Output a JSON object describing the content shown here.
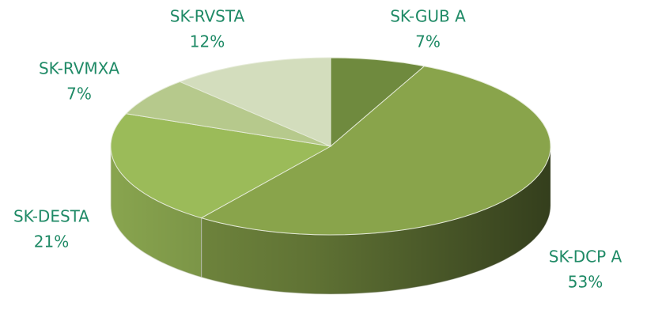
{
  "chart_data": {
    "type": "pie",
    "categories": [
      "SK-GUB A",
      "SK-DCP A",
      "SK-DESTA",
      "SK-RVMXA",
      "SK-RVSTA"
    ],
    "values": [
      7,
      53,
      21,
      7,
      12
    ],
    "value_labels": [
      "7%",
      "53%",
      "21%",
      "7%",
      "12%"
    ],
    "colors": [
      "#6f8a3e",
      "#89a44b",
      "#9bbb59",
      "#b6c98c",
      "#d3ddbd"
    ]
  }
}
